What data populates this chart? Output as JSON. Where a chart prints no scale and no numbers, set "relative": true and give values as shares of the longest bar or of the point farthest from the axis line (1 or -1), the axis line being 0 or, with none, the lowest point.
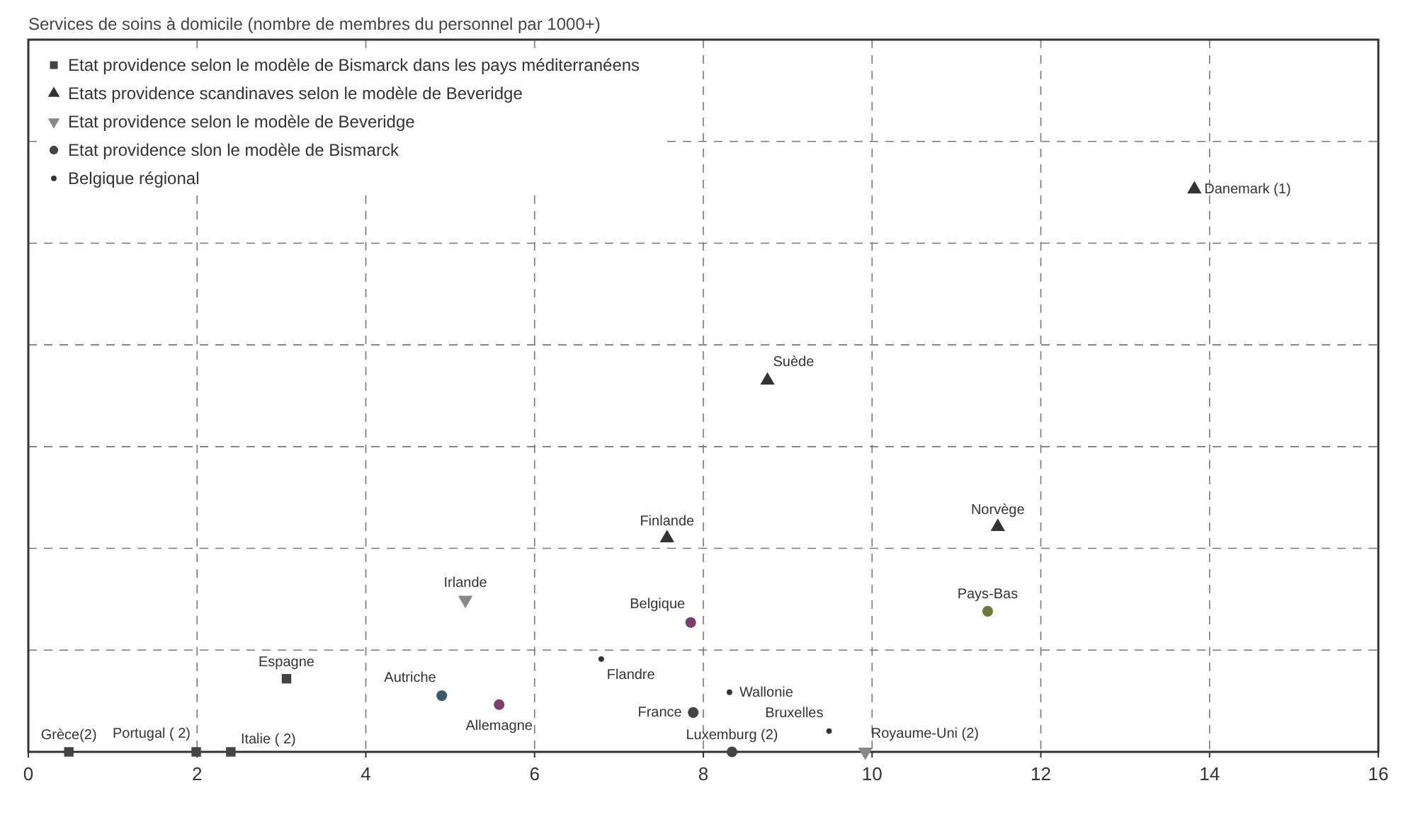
{
  "chart_data": {
    "type": "scatter",
    "title": "Services de soins à domicile (nombre de membres du personnel par 1000+)",
    "relative": true,
    "xlim": [
      0,
      16
    ],
    "xticks": [
      0,
      2,
      4,
      6,
      8,
      10,
      12,
      14,
      16
    ],
    "grid": true,
    "legend": "top left",
    "series": [
      {
        "name": "Etat providence selon le modèle de Bismarck dans les pays méditerranéens",
        "color": "#444444",
        "marker": "square",
        "x": [
          0.48,
          1.99,
          2.4,
          3.06
        ],
        "values": [
          0,
          0,
          0,
          0.13
        ]
      },
      {
        "name": "Etats providence scandinaves selon le modèle de Beveridge",
        "color": "#333333",
        "marker": "triangle",
        "x": [
          7.57,
          8.76,
          11.49,
          13.82
        ],
        "values": [
          0.38,
          0.66,
          0.4,
          1
        ]
      },
      {
        "name": "Etat providence selon le modèle de Beveridge",
        "color": "#888888",
        "marker": "triangle-down",
        "x": [
          5.18,
          9.92
        ],
        "values": [
          0.27,
          0
        ]
      },
      {
        "name": "Etat providence slon le modèle de Bismarck",
        "color": "#444444",
        "marker": "circle",
        "x": [
          4.9,
          5.58,
          7.85,
          7.88,
          8.34,
          11.37
        ],
        "values": [
          0.1,
          0.084,
          0.23,
          0.07,
          0,
          0.25
        ],
        "colors": [
          "#3d5a66",
          "#7a3d6e",
          "#7a3d6e",
          "#444444",
          "#444444",
          "#6b7a3d"
        ]
      },
      {
        "name": "Belgique régional",
        "color": "#333333",
        "marker": "dot",
        "x": [
          6.79,
          8.31,
          9.49
        ],
        "values": [
          0.165,
          0.106,
          0.037
        ]
      }
    ],
    "annotations": [
      {
        "text": "Grèce(2)",
        "x": 0.48,
        "y": 0
      },
      {
        "text": "Portugal ( 2)",
        "x": 1.99,
        "y": 0
      },
      {
        "text": "Italie ( 2)",
        "x": 2.4,
        "y": 0
      },
      {
        "text": "Espagne",
        "x": 3.06,
        "y": 0.13
      },
      {
        "text": "Autriche",
        "x": 4.9,
        "y": 0.1
      },
      {
        "text": "Allemagne",
        "x": 5.58,
        "y": 0.084
      },
      {
        "text": "Irlande",
        "x": 5.18,
        "y": 0.27
      },
      {
        "text": "Belgique",
        "x": 7.85,
        "y": 0.23
      },
      {
        "text": "France",
        "x": 7.88,
        "y": 0.07
      },
      {
        "text": "Luxemburg (2)",
        "x": 8.34,
        "y": 0
      },
      {
        "text": "Royaume-Uni (2)",
        "x": 9.92,
        "y": 0
      },
      {
        "text": "Pays-Bas",
        "x": 11.37,
        "y": 0.25
      },
      {
        "text": "Finlande",
        "x": 7.57,
        "y": 0.38
      },
      {
        "text": "Suède",
        "x": 8.76,
        "y": 0.66
      },
      {
        "text": "Norvège",
        "x": 11.49,
        "y": 0.4
      },
      {
        "text": "Danemark (1)",
        "x": 13.82,
        "y": 1
      },
      {
        "text": "Flandre",
        "x": 6.79,
        "y": 0.165
      },
      {
        "text": "Wallonie",
        "x": 8.31,
        "y": 0.106
      },
      {
        "text": "Bruxelles",
        "x": 9.49,
        "y": 0.037
      }
    ]
  }
}
